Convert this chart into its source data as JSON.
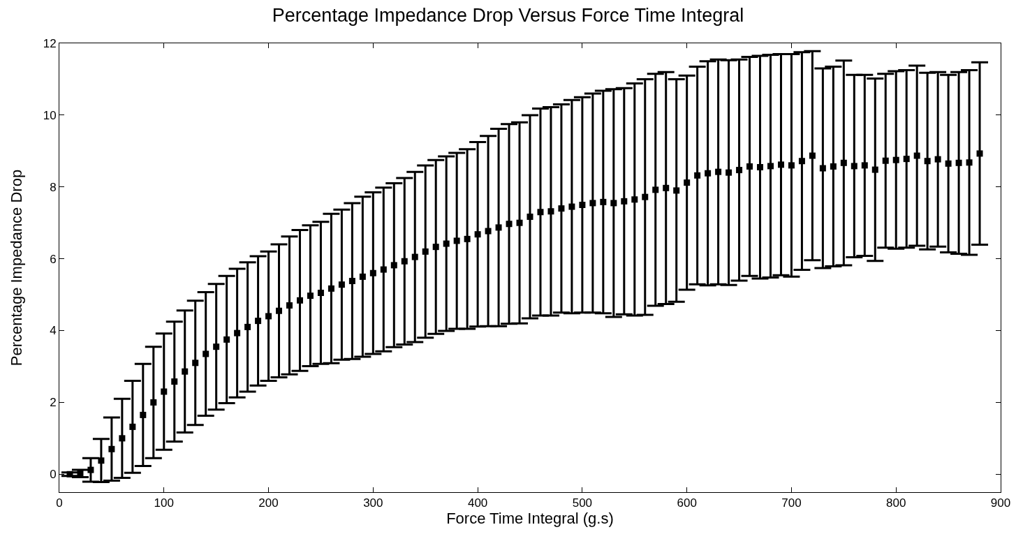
{
  "chart_data": {
    "type": "scatter",
    "title": "Percentage Impedance Drop Versus Force Time Integral",
    "xlabel": "Force Time Integral (g.s)",
    "ylabel": "Percentage Impedance Drop",
    "x": [
      10,
      20,
      30,
      40,
      50,
      60,
      70,
      80,
      90,
      100,
      110,
      120,
      130,
      140,
      150,
      160,
      170,
      180,
      190,
      200,
      210,
      220,
      230,
      240,
      250,
      260,
      270,
      280,
      290,
      300,
      310,
      320,
      330,
      340,
      350,
      360,
      370,
      380,
      390,
      400,
      410,
      420,
      430,
      440,
      450,
      460,
      470,
      480,
      490,
      500,
      510,
      520,
      530,
      540,
      550,
      560,
      570,
      580,
      590,
      600,
      610,
      620,
      630,
      640,
      650,
      660,
      670,
      680,
      690,
      700,
      710,
      720,
      730,
      740,
      750,
      760,
      770,
      780,
      790,
      800,
      810,
      820,
      830,
      840,
      850,
      860,
      870,
      880
    ],
    "values": [
      0,
      0.02,
      0.12,
      0.38,
      0.7,
      1.0,
      1.32,
      1.65,
      2.0,
      2.3,
      2.58,
      2.86,
      3.1,
      3.35,
      3.55,
      3.75,
      3.93,
      4.1,
      4.27,
      4.4,
      4.55,
      4.7,
      4.84,
      4.97,
      5.05,
      5.17,
      5.28,
      5.38,
      5.5,
      5.6,
      5.7,
      5.82,
      5.93,
      6.05,
      6.2,
      6.33,
      6.42,
      6.5,
      6.55,
      6.68,
      6.77,
      6.87,
      6.97,
      7.0,
      7.17,
      7.3,
      7.32,
      7.4,
      7.45,
      7.5,
      7.55,
      7.58,
      7.55,
      7.6,
      7.65,
      7.72,
      7.92,
      7.97,
      7.9,
      8.12,
      8.32,
      8.38,
      8.42,
      8.4,
      8.47,
      8.57,
      8.55,
      8.58,
      8.62,
      8.6,
      8.72,
      8.87,
      8.52,
      8.57,
      8.67,
      8.58,
      8.6,
      8.48,
      8.73,
      8.75,
      8.78,
      8.87,
      8.72,
      8.77,
      8.65,
      8.67,
      8.68,
      8.93
    ],
    "errors": [
      0.05,
      0.1,
      0.33,
      0.6,
      0.88,
      1.1,
      1.28,
      1.42,
      1.55,
      1.62,
      1.67,
      1.7,
      1.73,
      1.72,
      1.75,
      1.77,
      1.79,
      1.8,
      1.8,
      1.8,
      1.85,
      1.92,
      1.96,
      1.96,
      1.98,
      2.08,
      2.09,
      2.17,
      2.23,
      2.25,
      2.28,
      2.28,
      2.32,
      2.37,
      2.4,
      2.42,
      2.43,
      2.45,
      2.5,
      2.57,
      2.65,
      2.75,
      2.78,
      2.8,
      2.83,
      2.88,
      2.9,
      2.9,
      2.97,
      3.0,
      3.05,
      3.1,
      3.17,
      3.15,
      3.23,
      3.28,
      3.23,
      3.23,
      3.1,
      2.98,
      3.03,
      3.12,
      3.13,
      3.13,
      3.08,
      3.05,
      3.1,
      3.1,
      3.08,
      3.1,
      3.03,
      2.91,
      2.78,
      2.78,
      2.85,
      2.54,
      2.52,
      2.54,
      2.42,
      2.47,
      2.47,
      2.51,
      2.46,
      2.43,
      2.47,
      2.53,
      2.57,
      2.54
    ],
    "color": "#000000",
    "marker": "square",
    "xlim": [
      0,
      900
    ],
    "xticks": [
      0,
      100,
      200,
      300,
      400,
      500,
      600,
      700,
      800,
      900
    ],
    "ylim": [
      -0.5,
      12
    ],
    "yticks": [
      0,
      2,
      4,
      6,
      8,
      10,
      12
    ]
  }
}
